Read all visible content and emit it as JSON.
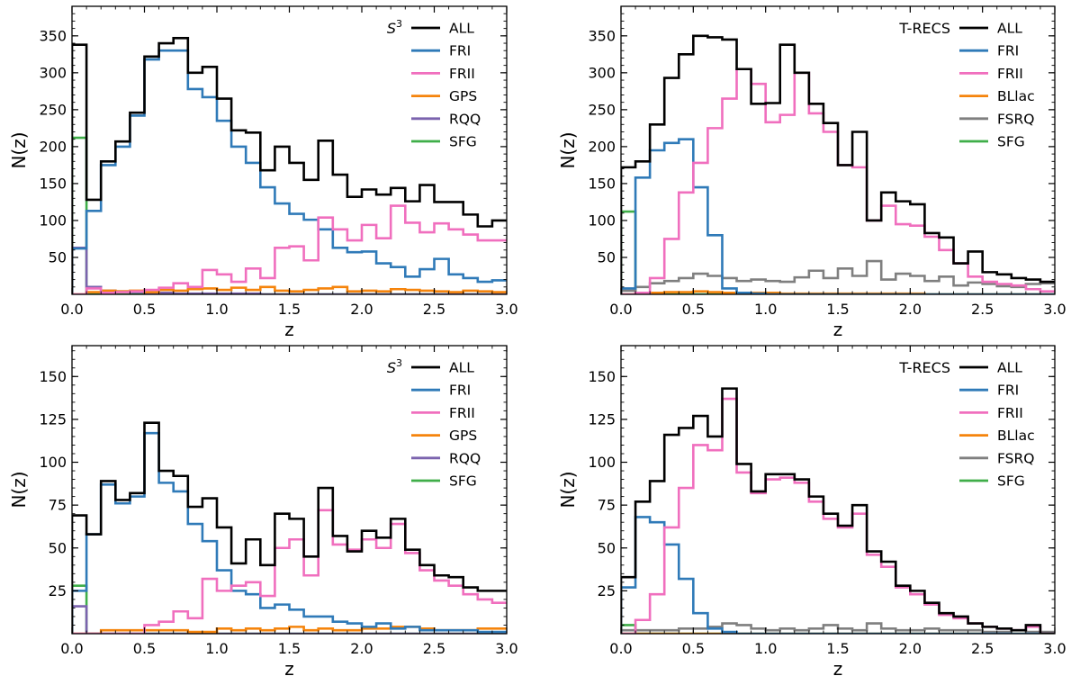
{
  "colors": {
    "ALL": "#000000",
    "FRI": "#2f7ab8",
    "FRII": "#f06fbe",
    "GPS": "#f5840c",
    "BLlac": "#f5840c",
    "RQQ": "#7b63ae",
    "FSRQ": "#7f7f7f",
    "SFG": "#3fae49"
  },
  "chart_data": [
    {
      "type": "step-histogram",
      "catalog_label": "S",
      "catalog_sup": "3",
      "xlabel": "z",
      "ylabel": "N(z)",
      "xlim": [
        0,
        3
      ],
      "ylim": [
        0,
        390
      ],
      "xticks": [
        "0.0",
        "0.5",
        "1.0",
        "1.5",
        "2.0",
        "2.5",
        "3.0"
      ],
      "xtick_values": [
        0,
        0.5,
        1,
        1.5,
        2,
        2.5,
        3
      ],
      "yticks": [
        50,
        100,
        150,
        200,
        250,
        300,
        350
      ],
      "bin_edges": [
        0.0,
        0.1,
        0.2,
        0.3,
        0.4,
        0.5,
        0.6,
        0.7,
        0.8,
        0.9,
        1.0,
        1.1,
        1.2,
        1.3,
        1.4,
        1.5,
        1.6,
        1.7,
        1.8,
        1.9,
        2.0,
        2.1,
        2.2,
        2.3,
        2.4,
        2.5,
        2.6,
        2.7,
        2.8,
        2.9,
        3.0
      ],
      "series": [
        {
          "name": "ALL",
          "values": [
            338,
            128,
            180,
            207,
            246,
            322,
            340,
            347,
            300,
            308,
            265,
            222,
            219,
            168,
            200,
            178,
            155,
            208,
            162,
            132,
            142,
            135,
            144,
            126,
            148,
            125,
            125,
            108,
            92,
            100
          ]
        },
        {
          "name": "FRI",
          "values": [
            62,
            113,
            175,
            200,
            242,
            318,
            330,
            330,
            278,
            267,
            235,
            200,
            178,
            145,
            123,
            109,
            101,
            88,
            63,
            57,
            58,
            42,
            37,
            24,
            34,
            48,
            27,
            22,
            17,
            19
          ]
        },
        {
          "name": "FRII",
          "values": [
            0,
            8,
            2,
            3,
            4,
            6,
            9,
            15,
            10,
            33,
            27,
            17,
            35,
            22,
            63,
            65,
            46,
            104,
            88,
            73,
            94,
            76,
            120,
            97,
            84,
            96,
            88,
            81,
            73,
            73
          ]
        },
        {
          "name": "GPS",
          "values": [
            0,
            3,
            5,
            4,
            5,
            3,
            6,
            5,
            7,
            8,
            6,
            9,
            6,
            10,
            5,
            4,
            6,
            8,
            10,
            4,
            5,
            4,
            7,
            6,
            5,
            4,
            3,
            5,
            4,
            3
          ]
        },
        {
          "name": "RQQ",
          "values": [
            63,
            10,
            5,
            4,
            3,
            2,
            2,
            1,
            1,
            1,
            1,
            1,
            1,
            0,
            0,
            0,
            0,
            0,
            0,
            0,
            0,
            0,
            0,
            0,
            0,
            0,
            0,
            0,
            0,
            0
          ]
        },
        {
          "name": "SFG",
          "values": [
            212,
            0,
            0,
            0,
            0,
            0,
            0,
            0,
            0,
            0,
            0,
            0,
            0,
            0,
            0,
            0,
            0,
            0,
            0,
            0,
            0,
            0,
            0,
            0,
            0,
            0,
            0,
            0,
            0,
            0
          ]
        }
      ]
    },
    {
      "type": "step-histogram",
      "catalog_label": "T-RECS",
      "catalog_sup": "",
      "xlabel": "z",
      "ylabel": "N(z)",
      "xlim": [
        0,
        3
      ],
      "ylim": [
        0,
        390
      ],
      "xticks": [
        "0.0",
        "0.5",
        "1.0",
        "1.5",
        "2.0",
        "2.5",
        "3.0"
      ],
      "xtick_values": [
        0,
        0.5,
        1,
        1.5,
        2,
        2.5,
        3
      ],
      "yticks": [
        50,
        100,
        150,
        200,
        250,
        300,
        350
      ],
      "bin_edges": [
        0.0,
        0.1,
        0.2,
        0.3,
        0.4,
        0.5,
        0.6,
        0.7,
        0.8,
        0.9,
        1.0,
        1.1,
        1.2,
        1.3,
        1.4,
        1.5,
        1.6,
        1.7,
        1.8,
        1.9,
        2.0,
        2.1,
        2.2,
        2.3,
        2.4,
        2.5,
        2.6,
        2.7,
        2.8,
        2.9,
        3.0
      ],
      "series": [
        {
          "name": "ALL",
          "values": [
            172,
            180,
            230,
            293,
            325,
            350,
            348,
            345,
            305,
            258,
            259,
            338,
            300,
            258,
            232,
            175,
            220,
            100,
            138,
            126,
            122,
            83,
            77,
            42,
            58,
            30,
            27,
            22,
            20,
            17
          ]
        },
        {
          "name": "FRI",
          "values": [
            8,
            158,
            195,
            205,
            210,
            145,
            80,
            8,
            2,
            1,
            0,
            0,
            0,
            0,
            0,
            0,
            0,
            0,
            0,
            0,
            0,
            0,
            0,
            0,
            0,
            0,
            0,
            0,
            0,
            0
          ]
        },
        {
          "name": "FRII",
          "values": [
            0,
            2,
            22,
            75,
            138,
            178,
            225,
            265,
            305,
            285,
            233,
            243,
            300,
            245,
            220,
            175,
            172,
            100,
            120,
            95,
            93,
            78,
            60,
            42,
            24,
            17,
            14,
            12,
            7,
            4
          ]
        },
        {
          "name": "BLlac",
          "values": [
            0,
            1,
            2,
            3,
            3,
            4,
            3,
            2,
            2,
            2,
            2,
            1,
            1,
            1,
            1,
            1,
            1,
            1,
            1,
            1,
            1,
            0,
            0,
            0,
            0,
            0,
            0,
            0,
            0,
            0
          ]
        },
        {
          "name": "FSRQ",
          "values": [
            5,
            10,
            15,
            18,
            22,
            28,
            25,
            22,
            18,
            20,
            18,
            17,
            23,
            32,
            22,
            35,
            25,
            45,
            20,
            28,
            25,
            18,
            24,
            12,
            16,
            14,
            11,
            10,
            14,
            15
          ]
        },
        {
          "name": "SFG",
          "values": [
            112,
            0,
            0,
            0,
            0,
            0,
            0,
            0,
            0,
            0,
            0,
            0,
            0,
            0,
            0,
            0,
            0,
            0,
            0,
            0,
            0,
            0,
            0,
            0,
            0,
            0,
            0,
            0,
            0,
            0
          ]
        }
      ]
    },
    {
      "type": "step-histogram",
      "catalog_label": "S",
      "catalog_sup": "3",
      "xlabel": "z",
      "ylabel": "N(z)",
      "xlim": [
        0,
        3
      ],
      "ylim": [
        0,
        168
      ],
      "xticks": [
        "0.0",
        "0.5",
        "1.0",
        "1.5",
        "2.0",
        "2.5",
        "3.0"
      ],
      "xtick_values": [
        0,
        0.5,
        1,
        1.5,
        2,
        2.5,
        3
      ],
      "yticks": [
        25,
        50,
        75,
        100,
        125,
        150
      ],
      "bin_edges": [
        0.0,
        0.1,
        0.2,
        0.3,
        0.4,
        0.5,
        0.6,
        0.7,
        0.8,
        0.9,
        1.0,
        1.1,
        1.2,
        1.3,
        1.4,
        1.5,
        1.6,
        1.7,
        1.8,
        1.9,
        2.0,
        2.1,
        2.2,
        2.3,
        2.4,
        2.5,
        2.6,
        2.7,
        2.8,
        2.9,
        3.0
      ],
      "series": [
        {
          "name": "ALL",
          "values": [
            69,
            58,
            89,
            78,
            82,
            123,
            95,
            92,
            74,
            79,
            62,
            41,
            55,
            40,
            70,
            67,
            45,
            85,
            57,
            48,
            60,
            56,
            67,
            49,
            40,
            34,
            33,
            27,
            25,
            25
          ]
        },
        {
          "name": "FRI",
          "values": [
            25,
            58,
            87,
            76,
            80,
            117,
            88,
            83,
            64,
            54,
            37,
            25,
            23,
            15,
            17,
            14,
            10,
            10,
            7,
            6,
            4,
            6,
            3,
            4,
            2,
            2,
            2,
            2,
            1,
            1
          ]
        },
        {
          "name": "FRII",
          "values": [
            0,
            0,
            0,
            0,
            0,
            5,
            7,
            13,
            9,
            32,
            25,
            28,
            30,
            22,
            50,
            55,
            34,
            72,
            52,
            49,
            55,
            50,
            64,
            47,
            37,
            31,
            28,
            23,
            20,
            18
          ]
        },
        {
          "name": "GPS",
          "values": [
            0,
            0,
            2,
            2,
            2,
            2,
            2,
            2,
            1,
            1,
            3,
            2,
            3,
            2,
            3,
            4,
            2,
            3,
            2,
            2,
            3,
            3,
            4,
            4,
            3,
            2,
            2,
            2,
            3,
            3
          ]
        },
        {
          "name": "RQQ",
          "values": [
            16,
            0,
            0,
            0,
            0,
            0,
            0,
            0,
            0,
            0,
            0,
            0,
            0,
            0,
            0,
            0,
            0,
            0,
            0,
            0,
            0,
            0,
            0,
            0,
            0,
            0,
            0,
            0,
            0,
            0
          ]
        },
        {
          "name": "SFG",
          "values": [
            28,
            0,
            0,
            0,
            0,
            0,
            0,
            0,
            0,
            0,
            0,
            0,
            0,
            0,
            0,
            0,
            0,
            0,
            0,
            0,
            0,
            0,
            0,
            0,
            0,
            0,
            0,
            0,
            0,
            0
          ]
        }
      ]
    },
    {
      "type": "step-histogram",
      "catalog_label": "T-RECS",
      "catalog_sup": "",
      "xlabel": "z",
      "ylabel": "N(z)",
      "xlim": [
        0,
        3
      ],
      "ylim": [
        0,
        168
      ],
      "xticks": [
        "0.0",
        "0.5",
        "1.0",
        "1.5",
        "2.0",
        "2.5",
        "3.0"
      ],
      "xtick_values": [
        0,
        0.5,
        1,
        1.5,
        2,
        2.5,
        3
      ],
      "yticks": [
        25,
        50,
        75,
        100,
        125,
        150
      ],
      "bin_edges": [
        0.0,
        0.1,
        0.2,
        0.3,
        0.4,
        0.5,
        0.6,
        0.7,
        0.8,
        0.9,
        1.0,
        1.1,
        1.2,
        1.3,
        1.4,
        1.5,
        1.6,
        1.7,
        1.8,
        1.9,
        2.0,
        2.1,
        2.2,
        2.3,
        2.4,
        2.5,
        2.6,
        2.7,
        2.8,
        2.9,
        3.0
      ],
      "series": [
        {
          "name": "ALL",
          "values": [
            33,
            77,
            89,
            116,
            120,
            127,
            115,
            143,
            99,
            83,
            93,
            93,
            90,
            80,
            70,
            63,
            75,
            48,
            42,
            28,
            25,
            18,
            12,
            10,
            6,
            4,
            3,
            2,
            5,
            0
          ]
        },
        {
          "name": "FRI",
          "values": [
            27,
            68,
            65,
            52,
            32,
            12,
            3,
            1,
            0,
            0,
            0,
            0,
            0,
            0,
            0,
            0,
            0,
            0,
            0,
            0,
            0,
            0,
            0,
            0,
            0,
            0,
            0,
            0,
            0,
            0
          ]
        },
        {
          "name": "FRII",
          "values": [
            0,
            8,
            23,
            62,
            85,
            110,
            107,
            137,
            94,
            82,
            90,
            91,
            88,
            77,
            67,
            62,
            70,
            46,
            39,
            27,
            23,
            17,
            11,
            9,
            6,
            4,
            3,
            2,
            4,
            0
          ]
        },
        {
          "name": "BLlac",
          "values": [
            0,
            0,
            0,
            0,
            0,
            0,
            0,
            0,
            0,
            0,
            0,
            0,
            0,
            0,
            0,
            0,
            0,
            0,
            0,
            0,
            0,
            0,
            0,
            0,
            0,
            0,
            0,
            0,
            0,
            0
          ]
        },
        {
          "name": "FSRQ",
          "values": [
            2,
            2,
            2,
            2,
            3,
            3,
            4,
            6,
            5,
            3,
            2,
            3,
            2,
            3,
            5,
            3,
            2,
            6,
            3,
            2,
            2,
            3,
            2,
            2,
            2,
            1,
            1,
            2,
            1,
            1
          ]
        },
        {
          "name": "SFG",
          "values": [
            5,
            0,
            0,
            0,
            0,
            0,
            0,
            0,
            0,
            0,
            0,
            0,
            0,
            0,
            0,
            0,
            0,
            0,
            0,
            0,
            0,
            0,
            0,
            0,
            0,
            0,
            0,
            0,
            0,
            0
          ]
        }
      ]
    }
  ]
}
